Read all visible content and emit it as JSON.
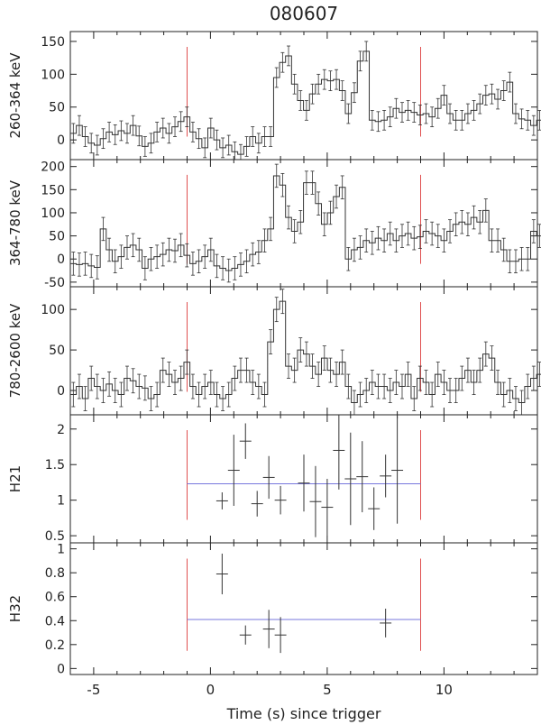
{
  "figure": {
    "title": "080607",
    "xlabel": "Time (s) since trigger"
  },
  "chart_data": [
    {
      "type": "step-histogram",
      "ylabel": "260-364 keV",
      "xlim": [
        -6,
        14
      ],
      "ylim": [
        -30,
        165
      ],
      "yticks": [
        0,
        50,
        100,
        150
      ],
      "xticks": [
        -5,
        0,
        5,
        10
      ],
      "markers": [
        -1,
        9
      ],
      "bin_width": 0.256,
      "start": -6,
      "error": 15,
      "values": [
        10,
        22,
        5,
        -5,
        -8,
        2,
        12,
        8,
        14,
        10,
        22,
        6,
        -10,
        -5,
        12,
        18,
        10,
        20,
        28,
        35,
        12,
        2,
        -12,
        18,
        0,
        -12,
        -8,
        -18,
        -22,
        -10,
        5,
        -5,
        5,
        5,
        95,
        118,
        128,
        85,
        60,
        45,
        70,
        85,
        92,
        90,
        92,
        75,
        40,
        72,
        120,
        135,
        30,
        28,
        30,
        35,
        48,
        42,
        45,
        42,
        38,
        40,
        35,
        48,
        68,
        40,
        30,
        30,
        40,
        45,
        55,
        68,
        70,
        62,
        75,
        88,
        40,
        32,
        30,
        22,
        30,
        20,
        35,
        10,
        20,
        45,
        40,
        32,
        30,
        20,
        22,
        8,
        -5,
        -2,
        -20,
        -12,
        5,
        -2,
        10,
        20,
        18,
        10,
        5,
        5,
        0,
        -5,
        -3,
        22,
        25,
        12,
        -5,
        -10
      ]
    },
    {
      "type": "step-histogram",
      "ylabel": "364-780 keV",
      "xlim": [
        -6,
        14
      ],
      "ylim": [
        -60,
        215
      ],
      "yticks": [
        -50,
        0,
        50,
        100,
        150,
        200
      ],
      "xticks": [
        -5,
        0,
        5,
        10
      ],
      "markers": [
        -1,
        9
      ],
      "bin_width": 0.256,
      "start": -6,
      "error": 25,
      "values": [
        -10,
        -12,
        -10,
        -15,
        -18,
        65,
        20,
        -5,
        5,
        25,
        30,
        20,
        -20,
        0,
        5,
        10,
        20,
        18,
        30,
        8,
        -10,
        -5,
        5,
        20,
        -15,
        -20,
        -25,
        -20,
        -12,
        -5,
        10,
        15,
        40,
        65,
        180,
        160,
        90,
        60,
        80,
        165,
        165,
        120,
        75,
        100,
        135,
        155,
        0,
        20,
        25,
        40,
        35,
        45,
        40,
        55,
        40,
        50,
        55,
        45,
        48,
        60,
        55,
        50,
        40,
        60,
        75,
        80,
        75,
        90,
        80,
        105,
        40,
        40,
        20,
        -5,
        -5,
        0,
        0,
        60,
        50,
        30,
        30,
        15,
        25,
        10,
        5,
        0,
        40,
        40,
        25,
        20,
        15,
        10,
        15,
        0,
        -20,
        5,
        -10,
        5,
        10,
        20,
        -15,
        -20,
        -35,
        -20,
        -20
      ]
    },
    {
      "type": "step-histogram",
      "ylabel": "780-2600 keV",
      "xlim": [
        -6,
        14
      ],
      "ylim": [
        -30,
        128
      ],
      "yticks": [
        0,
        50,
        100
      ],
      "xticks": [
        -5,
        0,
        5,
        10
      ],
      "markers": [
        -1,
        9
      ],
      "bin_width": 0.256,
      "start": -6,
      "error": 15,
      "values": [
        -5,
        5,
        -10,
        15,
        5,
        0,
        8,
        0,
        -5,
        15,
        12,
        5,
        3,
        -10,
        -5,
        25,
        20,
        10,
        15,
        35,
        5,
        -5,
        5,
        10,
        -5,
        -10,
        -5,
        15,
        25,
        25,
        10,
        5,
        -5,
        60,
        100,
        110,
        30,
        25,
        50,
        45,
        30,
        20,
        40,
        25,
        20,
        35,
        5,
        -15,
        -5,
        0,
        10,
        5,
        5,
        0,
        10,
        5,
        20,
        -10,
        15,
        10,
        -5,
        20,
        10,
        0,
        0,
        15,
        25,
        10,
        25,
        45,
        40,
        10,
        -5,
        0,
        -10,
        -15,
        5,
        15,
        20,
        10,
        15,
        10,
        20,
        15,
        0,
        20,
        25,
        15,
        5,
        0,
        15,
        10,
        20,
        25,
        30,
        15,
        -5,
        5,
        10,
        40,
        30,
        0,
        10,
        -5
      ]
    },
    {
      "type": "scatter-errorbar",
      "ylabel": "H21",
      "xlim": [
        -6,
        14
      ],
      "ylim": [
        0.4,
        2.2
      ],
      "yticks": [
        0.5,
        1.0,
        1.5,
        2.0
      ],
      "xticks": [
        -5,
        0,
        5,
        10
      ],
      "markers": [
        -1,
        9
      ],
      "mean": 1.23,
      "points": [
        {
          "x": 0.5,
          "y": 0.99,
          "yerr": 0.12,
          "xerr": 0.25
        },
        {
          "x": 1.0,
          "y": 1.42,
          "yerr": 0.5,
          "xerr": 0.25
        },
        {
          "x": 1.5,
          "y": 1.83,
          "yerr": 0.25,
          "xerr": 0.25
        },
        {
          "x": 2.0,
          "y": 0.95,
          "yerr": 0.18,
          "xerr": 0.25
        },
        {
          "x": 2.5,
          "y": 1.32,
          "yerr": 0.3,
          "xerr": 0.25
        },
        {
          "x": 3.0,
          "y": 1.0,
          "yerr": 0.2,
          "xerr": 0.25
        },
        {
          "x": 4.0,
          "y": 1.24,
          "yerr": 0.4,
          "xerr": 0.25
        },
        {
          "x": 4.5,
          "y": 0.98,
          "yerr": 0.5,
          "xerr": 0.25
        },
        {
          "x": 5.0,
          "y": 0.9,
          "yerr": 0.4,
          "xerr": 0.25
        },
        {
          "x": 5.5,
          "y": 1.7,
          "yerr": 0.55,
          "xerr": 0.25
        },
        {
          "x": 6.0,
          "y": 1.3,
          "yerr": 0.65,
          "xerr": 0.25
        },
        {
          "x": 6.5,
          "y": 1.33,
          "yerr": 0.5,
          "xerr": 0.25
        },
        {
          "x": 7.0,
          "y": 0.88,
          "yerr": 0.3,
          "xerr": 0.25
        },
        {
          "x": 7.5,
          "y": 1.34,
          "yerr": 0.3,
          "xerr": 0.25
        },
        {
          "x": 8.0,
          "y": 1.42,
          "yerr": 0.75,
          "xerr": 0.25
        }
      ]
    },
    {
      "type": "scatter-errorbar",
      "ylabel": "H32",
      "xlim": [
        -6,
        14
      ],
      "ylim": [
        -0.05,
        1.05
      ],
      "yticks": [
        0.0,
        0.2,
        0.4,
        0.6,
        0.8,
        1.0
      ],
      "xticks": [
        -5,
        0,
        5,
        10
      ],
      "markers": [
        -1,
        9
      ],
      "mean": 0.41,
      "points": [
        {
          "x": 0.5,
          "y": 0.79,
          "yerr": 0.17,
          "xerr": 0.25
        },
        {
          "x": 1.5,
          "y": 0.28,
          "yerr": 0.08,
          "xerr": 0.25
        },
        {
          "x": 2.5,
          "y": 0.33,
          "yerr": 0.16,
          "xerr": 0.25
        },
        {
          "x": 3.0,
          "y": 0.28,
          "yerr": 0.15,
          "xerr": 0.25
        },
        {
          "x": 7.5,
          "y": 0.38,
          "yerr": 0.12,
          "xerr": 0.25
        }
      ]
    }
  ],
  "colors": {
    "line": "#333333",
    "marker": "#e05050",
    "mean": "#7777dd",
    "axis": "#222222"
  }
}
